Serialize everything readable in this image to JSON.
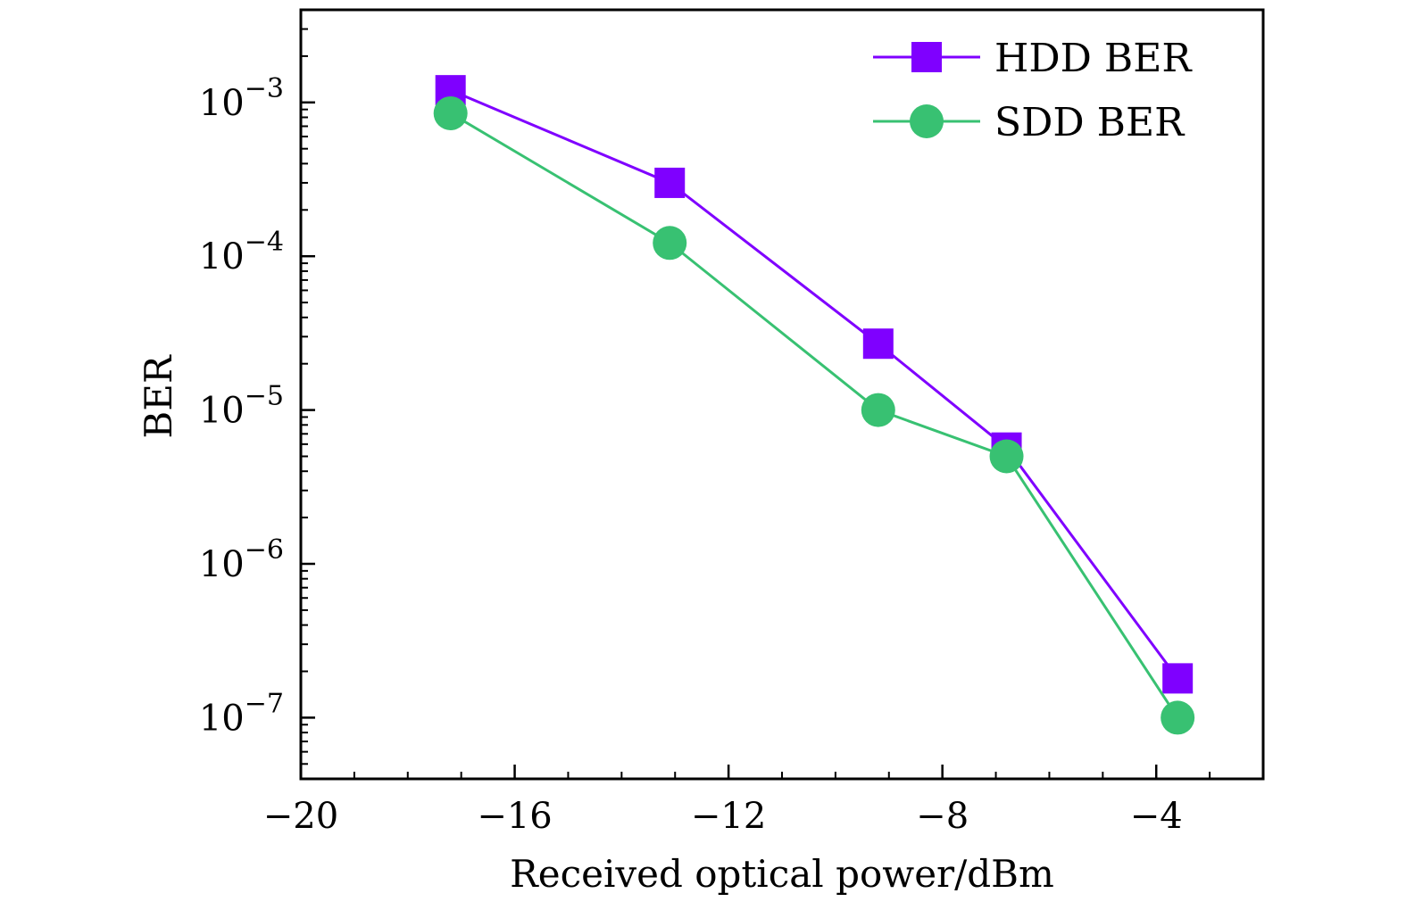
{
  "chart_data": {
    "type": "line",
    "xlabel": "Received optical power/dBm",
    "ylabel": "BER",
    "xlim": [
      -20,
      -2
    ],
    "ylim": [
      4e-08,
      0.004
    ],
    "yscale": "log",
    "x_ticks": [
      -20,
      -16,
      -12,
      -8,
      -4
    ],
    "x_tick_labels": [
      "−20",
      "−16",
      "−12",
      "−8",
      "−4"
    ],
    "y_ticks": [
      {
        "exp": -3,
        "base": "10",
        "sup": "−3"
      },
      {
        "exp": -4,
        "base": "10",
        "sup": "−4"
      },
      {
        "exp": -5,
        "base": "10",
        "sup": "−5"
      },
      {
        "exp": -6,
        "base": "10",
        "sup": "−6"
      },
      {
        "exp": -7,
        "base": "10",
        "sup": "−7"
      }
    ],
    "grid": false,
    "legend_position": "top-right",
    "series": [
      {
        "name": "HDD BER",
        "color": "#7f00ff",
        "marker": "square",
        "points": [
          {
            "x": -17.2,
            "y": 0.0012
          },
          {
            "x": -13.1,
            "y": 0.0003
          },
          {
            "x": -9.2,
            "y": 2.7e-05
          },
          {
            "x": -6.8,
            "y": 5.7e-06
          },
          {
            "x": -3.6,
            "y": 1.8e-07
          }
        ]
      },
      {
        "name": "SDD BER",
        "color": "#38c172",
        "marker": "circle",
        "points": [
          {
            "x": -17.2,
            "y": 0.00085
          },
          {
            "x": -13.1,
            "y": 0.000122
          },
          {
            "x": -9.2,
            "y": 1e-05
          },
          {
            "x": -6.8,
            "y": 5e-06
          },
          {
            "x": -3.6,
            "y": 1e-07
          }
        ]
      }
    ]
  }
}
